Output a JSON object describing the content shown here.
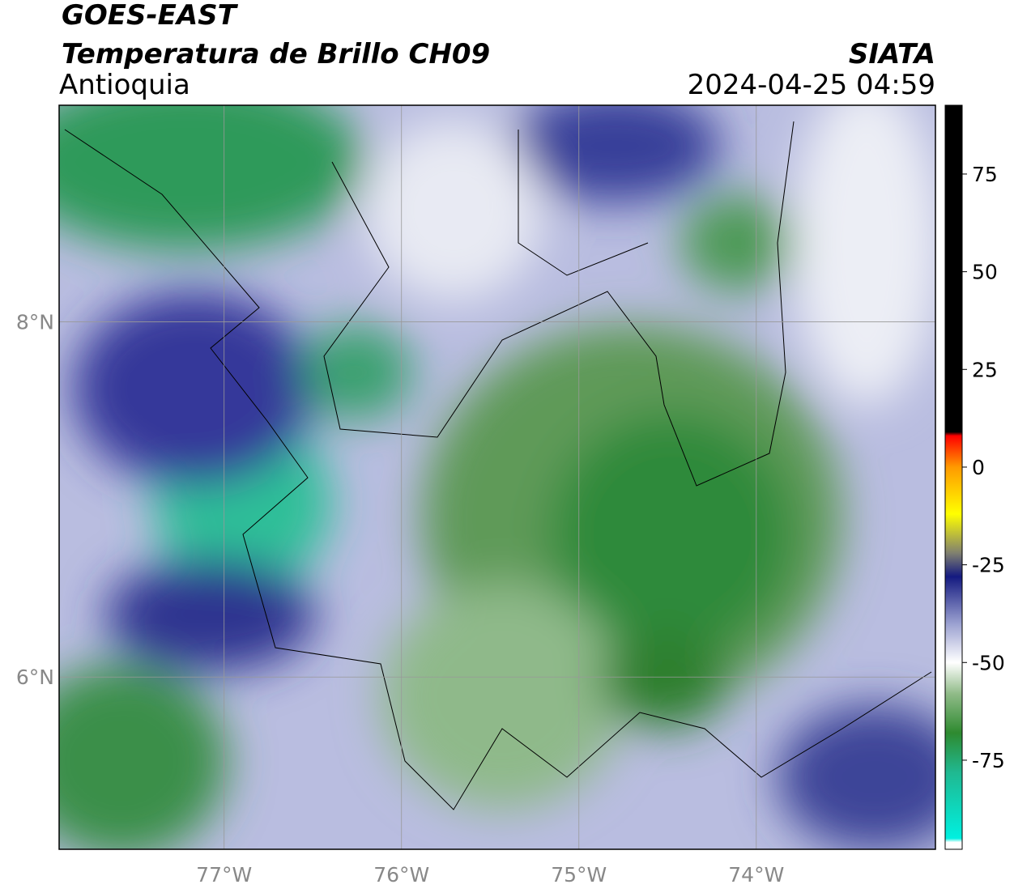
{
  "header": {
    "title": "GOES-EAST",
    "subtitle": "Temperatura de Brillo CH09",
    "region": "Antioquia",
    "agency": "SIATA",
    "timestamp": "2024-04-25 04:59"
  },
  "map": {
    "lonlim": [
      -77.93,
      -72.99
    ],
    "latlim": [
      5.03,
      9.22
    ],
    "lon_ticks": [
      {
        "value": -77,
        "label": "77°W"
      },
      {
        "value": -76,
        "label": "76°W"
      },
      {
        "value": -75,
        "label": "75°W"
      },
      {
        "value": -74,
        "label": "74°W"
      }
    ],
    "lat_ticks": [
      {
        "value": 8,
        "label": "8°N"
      },
      {
        "value": 6,
        "label": "6°N"
      }
    ]
  },
  "colorbar": {
    "lim": [
      -97.8,
      92.6
    ],
    "ticks": [
      75,
      50,
      25,
      0,
      -25,
      -50,
      -75
    ],
    "colormap": [
      {
        "value": -97.8,
        "color": "#ffffff"
      },
      {
        "value": -96,
        "color": "#ffffff"
      },
      {
        "value": -95,
        "color": "#00f0e0"
      },
      {
        "value": -78,
        "color": "#20b890"
      },
      {
        "value": -68,
        "color": "#2e8a30"
      },
      {
        "value": -58,
        "color": "#90bb88"
      },
      {
        "value": -50,
        "color": "#ffffff"
      },
      {
        "value": -40,
        "color": "#9aa0d0"
      },
      {
        "value": -28,
        "color": "#141a80"
      },
      {
        "value": -22,
        "color": "#808070"
      },
      {
        "value": -12,
        "color": "#ffff00"
      },
      {
        "value": 0,
        "color": "#ff9a00"
      },
      {
        "value": 8,
        "color": "#ff0000"
      },
      {
        "value": 9,
        "color": "#000000"
      },
      {
        "value": 92.6,
        "color": "#000000"
      }
    ]
  }
}
